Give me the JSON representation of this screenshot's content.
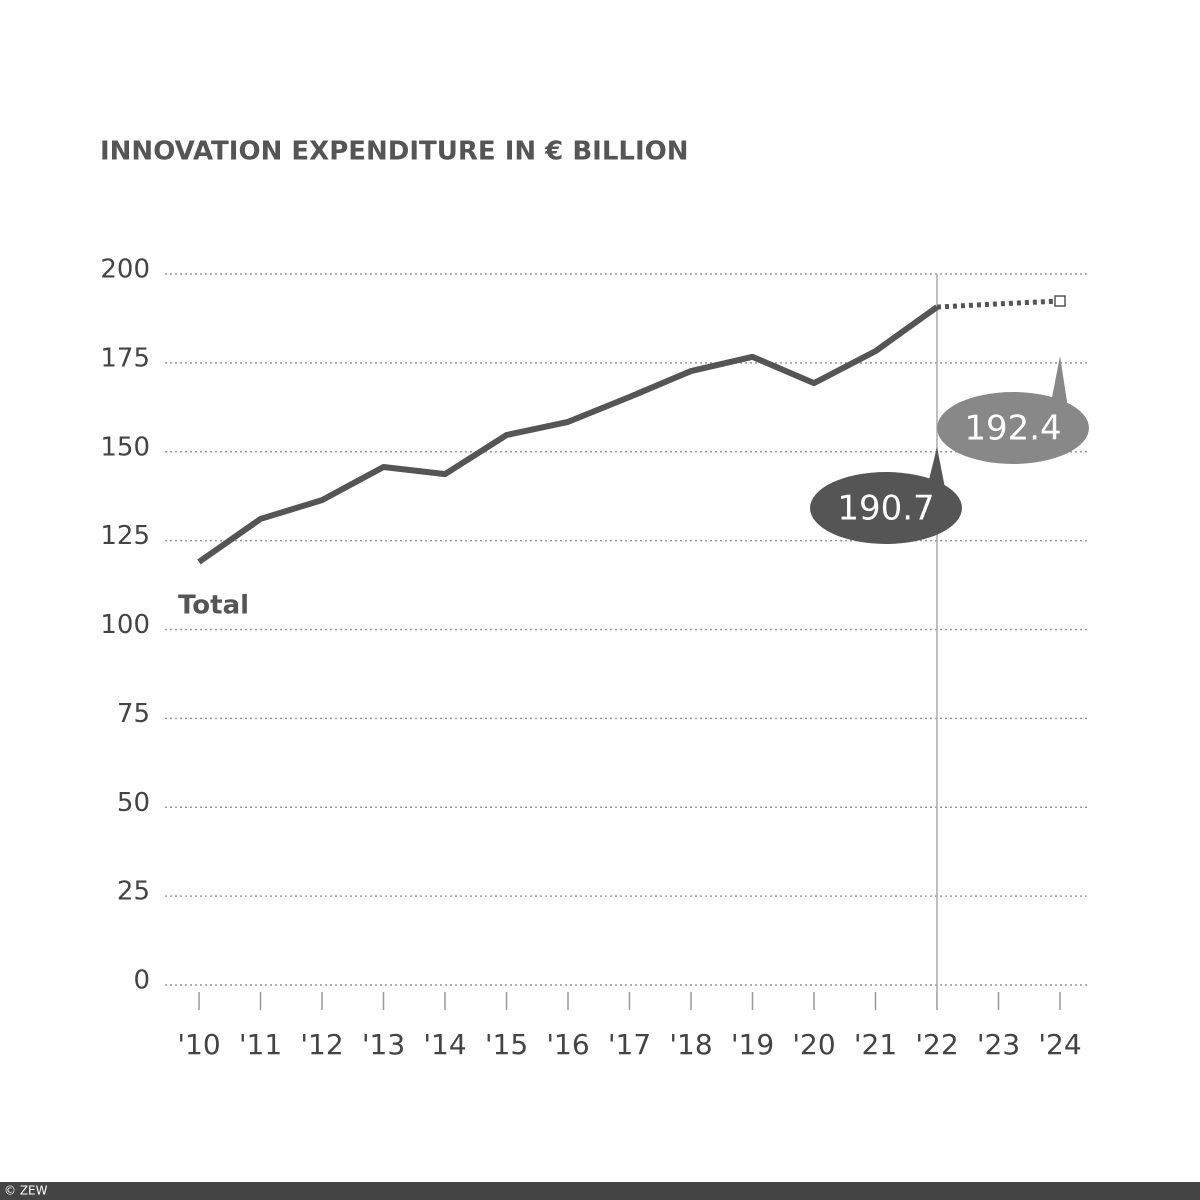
{
  "chart_data": {
    "type": "line",
    "title": "INNOVATION EXPENDITURE IN € BILLION",
    "categories": [
      "'10",
      "'11",
      "'12",
      "'13",
      "'14",
      "'15",
      "'16",
      "'17",
      "'18",
      "'19",
      "'20",
      "'21",
      "'22",
      "'23",
      "'24"
    ],
    "series": [
      {
        "name": "Total",
        "color": "#555555",
        "values": [
          119,
          131.1,
          136.4,
          145.7,
          143.7,
          154.7,
          158.4,
          165.4,
          172.7,
          176.7,
          169.3,
          178.3,
          190.7,
          null,
          null
        ]
      },
      {
        "color": "#555555",
        "dashed": true,
        "values": [
          null,
          null,
          null,
          null,
          null,
          null,
          null,
          null,
          null,
          null,
          null,
          null,
          190.7,
          191.6,
          192.4
        ]
      }
    ],
    "ylim": [
      0,
      200
    ],
    "yticks": [
      0,
      25,
      50,
      75,
      100,
      125,
      150,
      175,
      200
    ],
    "grid": true,
    "credit": "© ZEW"
  }
}
